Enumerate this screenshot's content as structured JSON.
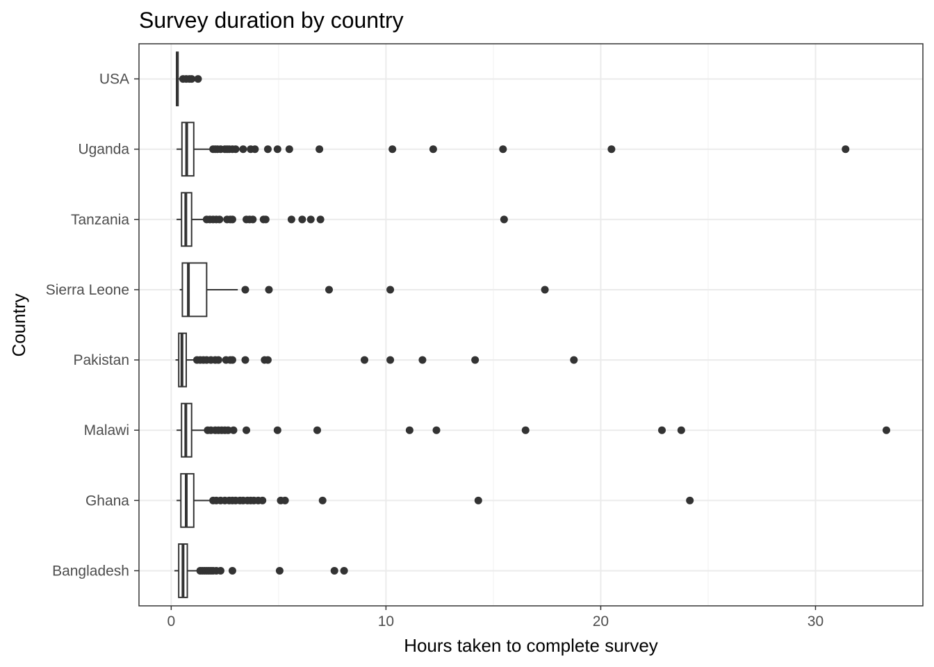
{
  "chart_data": {
    "type": "boxplot",
    "orientation": "horizontal",
    "title": "Survey duration by country",
    "xlabel": "Hours taken to complete survey",
    "ylabel": "Country",
    "xlim": [
      -1.5,
      35.0
    ],
    "x_ticks": [
      0,
      10,
      20,
      30
    ],
    "x_tick_labels": [
      "0",
      "10",
      "20",
      "30"
    ],
    "grid": true,
    "theme": "bw",
    "categories": [
      "Bangladesh",
      "Ghana",
      "Malawi",
      "Pakistan",
      "Sierra Leone",
      "Tanzania",
      "Uganda",
      "USA"
    ],
    "series": [
      {
        "category": "USA",
        "whisker_low": 0.22,
        "q1": 0.25,
        "median": 0.28,
        "q3": 0.32,
        "whisker_high": 0.38,
        "outliers": [
          0.55,
          0.7,
          0.85,
          0.95,
          1.25
        ]
      },
      {
        "category": "Uganda",
        "whisker_low": 0.25,
        "q1": 0.5,
        "median": 0.72,
        "q3": 1.05,
        "whisker_high": 1.85,
        "outliers": [
          1.95,
          2.05,
          2.15,
          2.3,
          2.5,
          2.6,
          2.7,
          2.85,
          3.0,
          3.35,
          3.7,
          3.9,
          4.5,
          4.95,
          5.5,
          6.9,
          10.3,
          12.2,
          15.45,
          20.5,
          31.4
        ]
      },
      {
        "category": "Tanzania",
        "whisker_low": 0.25,
        "q1": 0.48,
        "median": 0.68,
        "q3": 0.95,
        "whisker_high": 1.55,
        "outliers": [
          1.65,
          1.8,
          1.95,
          2.1,
          2.25,
          2.6,
          2.75,
          2.85,
          3.5,
          3.65,
          3.8,
          4.3,
          4.4,
          5.6,
          6.1,
          6.5,
          6.95,
          15.5
        ]
      },
      {
        "category": "Sierra Leone",
        "whisker_low": 0.4,
        "q1": 0.52,
        "median": 0.8,
        "q3": 1.65,
        "whisker_high": 3.1,
        "outliers": [
          3.45,
          4.55,
          7.35,
          10.2,
          17.4
        ]
      },
      {
        "category": "Pakistan",
        "whisker_low": 0.2,
        "q1": 0.35,
        "median": 0.5,
        "q3": 0.7,
        "whisker_high": 1.1,
        "outliers": [
          1.2,
          1.35,
          1.5,
          1.65,
          1.85,
          2.05,
          2.2,
          2.55,
          2.75,
          2.85,
          3.45,
          4.35,
          4.5,
          9.0,
          10.2,
          11.7,
          14.15,
          18.75
        ]
      },
      {
        "category": "Malawi",
        "whisker_low": 0.25,
        "q1": 0.48,
        "median": 0.68,
        "q3": 0.95,
        "whisker_high": 1.6,
        "outliers": [
          1.7,
          1.85,
          2.05,
          2.2,
          2.35,
          2.5,
          2.65,
          2.9,
          3.5,
          4.95,
          6.8,
          11.1,
          12.35,
          16.5,
          22.85,
          23.75,
          33.3
        ]
      },
      {
        "category": "Ghana",
        "whisker_low": 0.25,
        "q1": 0.45,
        "median": 0.7,
        "q3": 1.05,
        "whisker_high": 1.8,
        "outliers": [
          1.95,
          2.1,
          2.3,
          2.5,
          2.7,
          2.85,
          3.0,
          3.2,
          3.35,
          3.55,
          3.7,
          3.85,
          4.05,
          4.25,
          5.1,
          5.3,
          7.05,
          14.3,
          24.15
        ]
      },
      {
        "category": "Bangladesh",
        "whisker_low": 0.15,
        "q1": 0.35,
        "median": 0.55,
        "q3": 0.75,
        "whisker_high": 1.3,
        "outliers": [
          1.35,
          1.45,
          1.55,
          1.65,
          1.75,
          1.85,
          1.95,
          2.1,
          2.3,
          2.85,
          5.05,
          7.6,
          8.05
        ]
      }
    ],
    "colors": {
      "box_stroke": "#333333",
      "box_fill": "#ffffff",
      "point": "#333333",
      "grid_major": "#ebebeb",
      "grid_minor": "#f3f3f3",
      "panel_border": "#333333"
    }
  }
}
